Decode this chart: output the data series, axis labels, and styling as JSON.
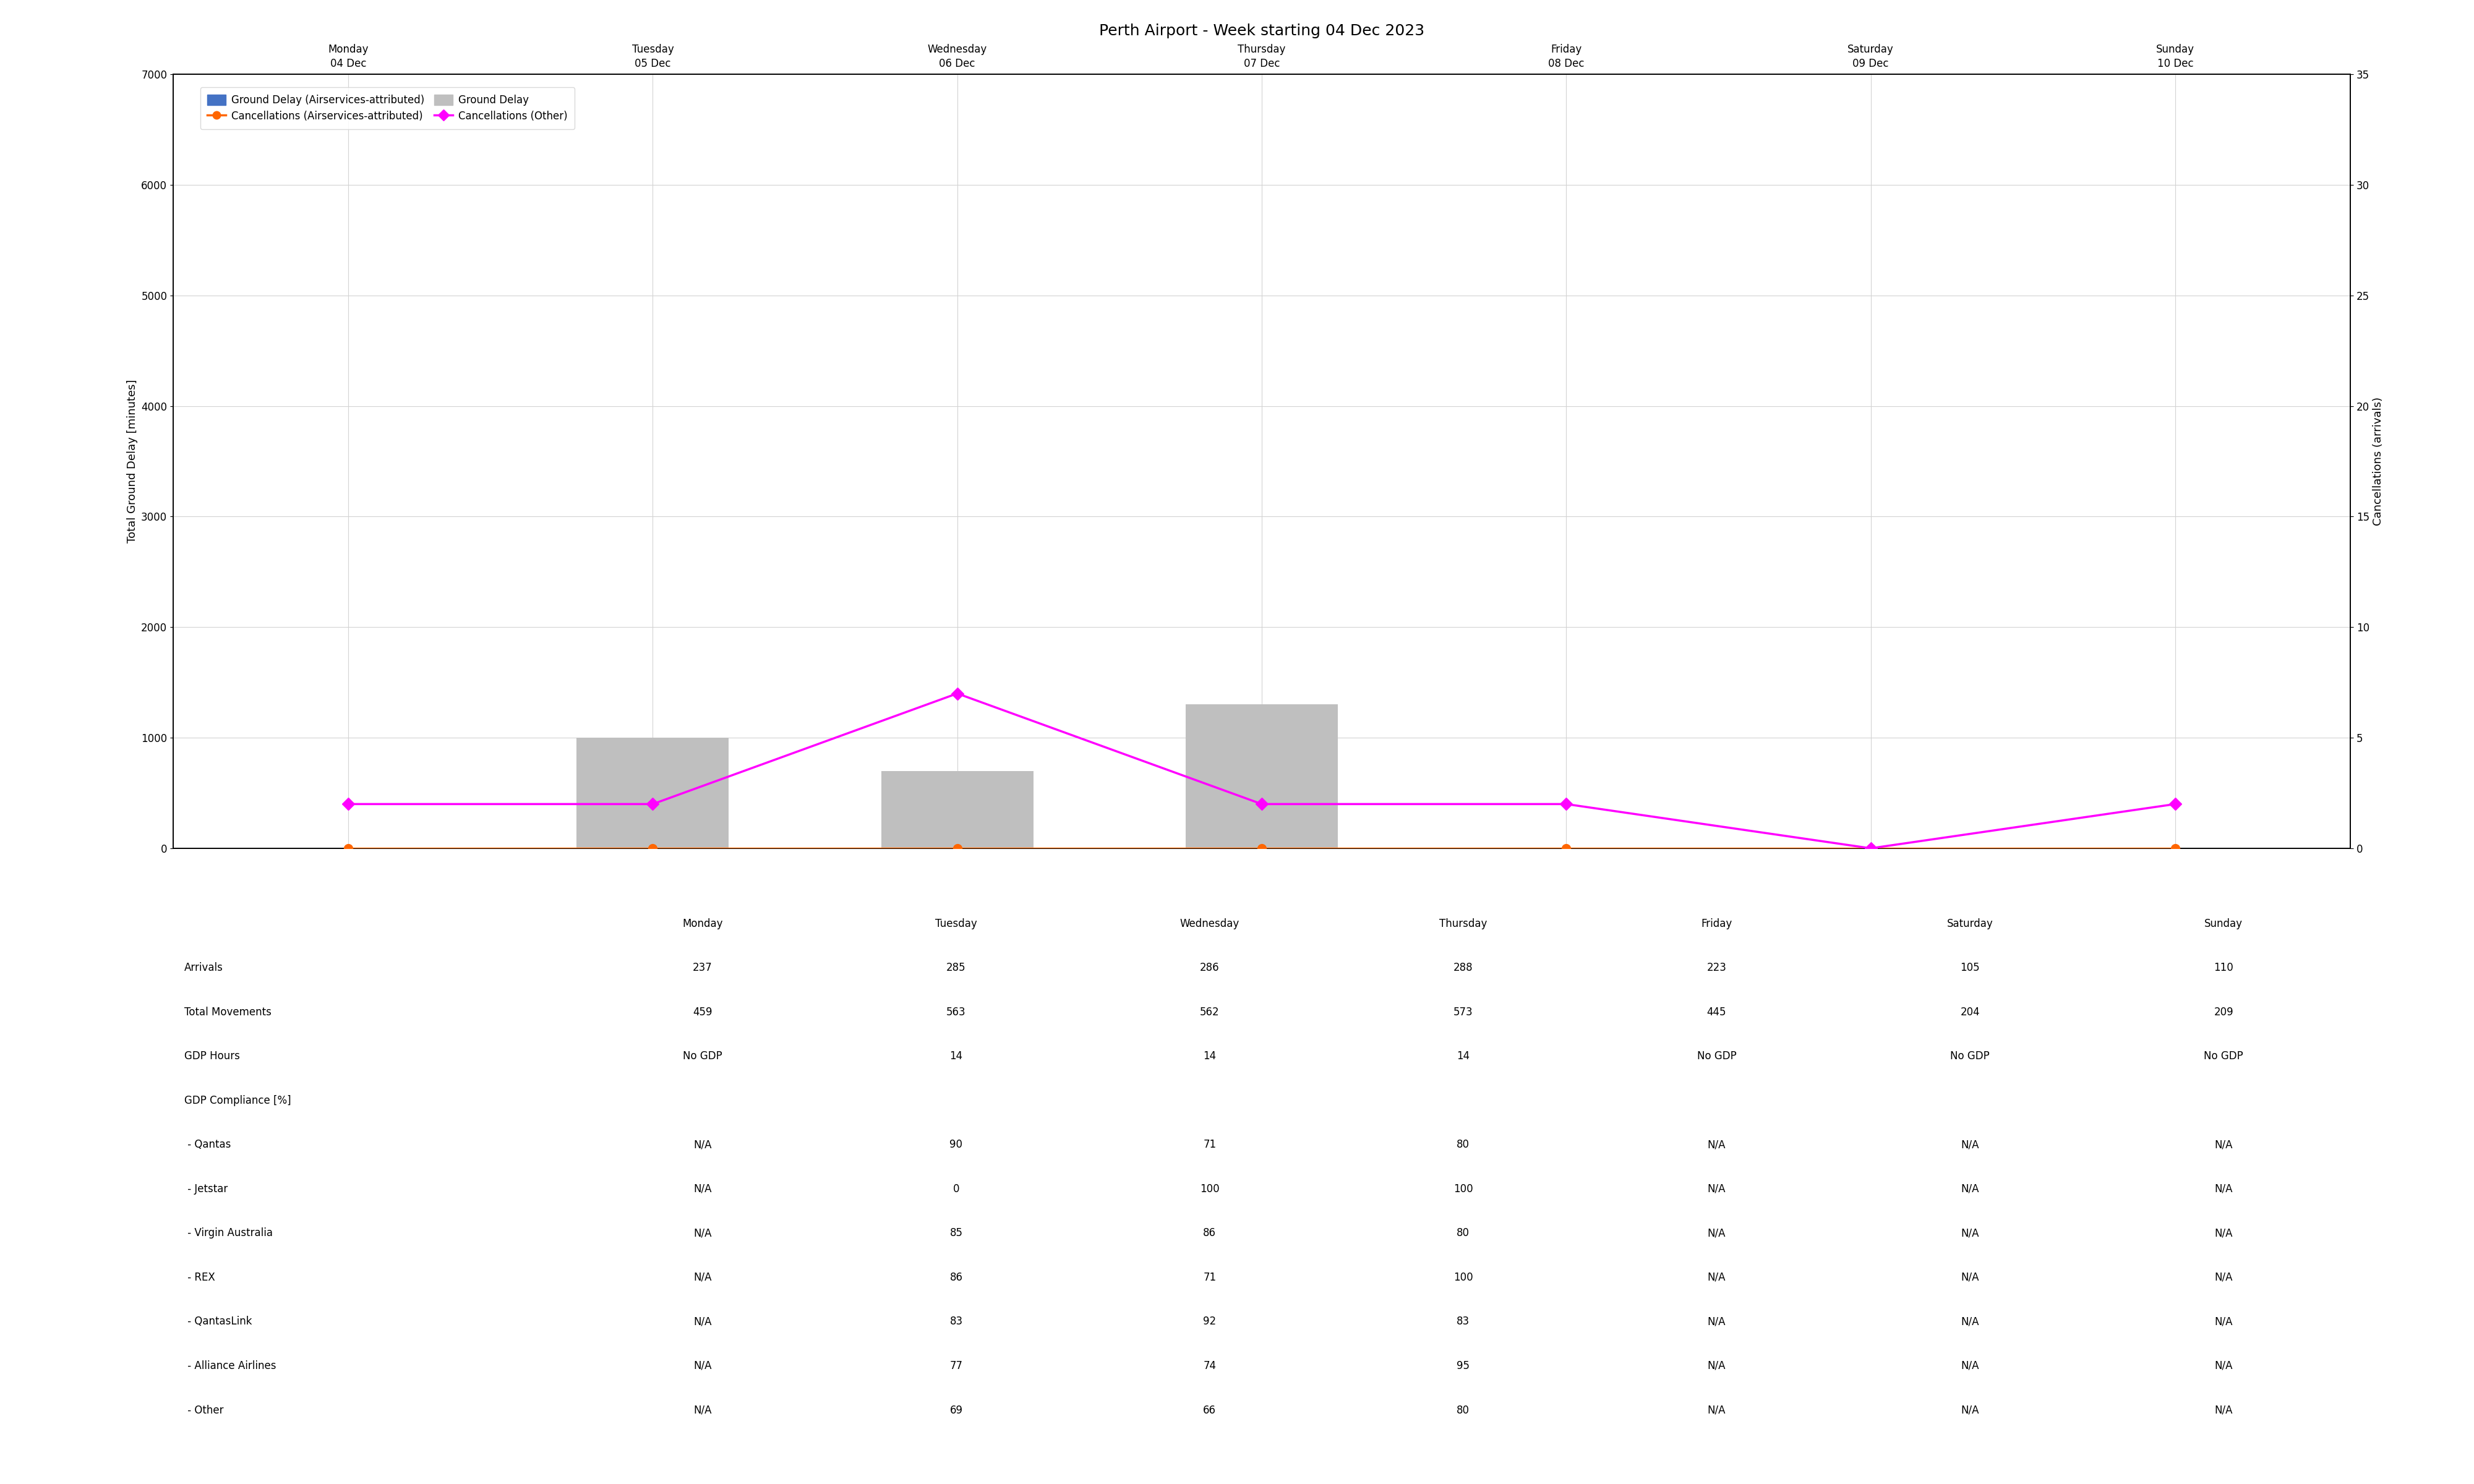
{
  "title": "Perth Airport - Week starting 04 Dec 2023",
  "days": [
    "Monday\n04 Dec",
    "Tuesday\n05 Dec",
    "Wednesday\n06 Dec",
    "Thursday\n07 Dec",
    "Friday\n08 Dec",
    "Saturday\n09 Dec",
    "Sunday\n10 Dec"
  ],
  "days_short": [
    "Monday",
    "Tuesday",
    "Wednesday",
    "Thursday",
    "Friday",
    "Saturday",
    "Sunday"
  ],
  "ground_delay_airservices": [
    0,
    0,
    0,
    0,
    0,
    0,
    0
  ],
  "ground_delay_total": [
    0,
    1000,
    700,
    1300,
    0,
    0,
    0
  ],
  "cancellations_airservices": [
    0,
    0,
    0,
    0,
    0,
    0,
    0
  ],
  "cancellations_other": [
    2,
    2,
    7,
    2,
    2,
    0,
    2
  ],
  "ylim_left": [
    0,
    7000
  ],
  "ylim_right": [
    0,
    35
  ],
  "yticks_left": [
    0,
    1000,
    2000,
    3000,
    4000,
    5000,
    6000,
    7000
  ],
  "yticks_right": [
    0,
    5,
    10,
    15,
    20,
    25,
    30,
    35
  ],
  "ylabel_left": "Total Ground Delay [minutes]",
  "ylabel_right": "Cancellations (arrivals)",
  "bar_color_airservices": "#4472C4",
  "bar_color_total": "#BFBFBF",
  "line_color_cancellations_airservices": "#FF6600",
  "line_color_cancellations_other": "#FF00FF",
  "table_rows": [
    "Arrivals",
    "Total Movements",
    "GDP Hours",
    "GDP Compliance [%]",
    " - Qantas",
    " - Jetstar",
    " - Virgin Australia",
    " - REX",
    " - QantasLink",
    " - Alliance Airlines",
    " - Other"
  ],
  "table_data": {
    "Monday": [
      "237",
      "459",
      "No GDP",
      "",
      "N/A",
      "N/A",
      "N/A",
      "N/A",
      "N/A",
      "N/A",
      "N/A"
    ],
    "Tuesday": [
      "285",
      "563",
      "14",
      "",
      "90",
      "0",
      "85",
      "86",
      "83",
      "77",
      "69"
    ],
    "Wednesday": [
      "286",
      "562",
      "14",
      "",
      "71",
      "100",
      "86",
      "71",
      "92",
      "74",
      "66"
    ],
    "Thursday": [
      "288",
      "573",
      "14",
      "",
      "80",
      "100",
      "80",
      "100",
      "83",
      "95",
      "80"
    ],
    "Friday": [
      "223",
      "445",
      "No GDP",
      "",
      "N/A",
      "N/A",
      "N/A",
      "N/A",
      "N/A",
      "N/A",
      "N/A"
    ],
    "Saturday": [
      "105",
      "204",
      "No GDP",
      "",
      "N/A",
      "N/A",
      "N/A",
      "N/A",
      "N/A",
      "N/A",
      "N/A"
    ],
    "Sunday": [
      "110",
      "209",
      "No GDP",
      "",
      "N/A",
      "N/A",
      "N/A",
      "N/A",
      "N/A",
      "N/A",
      "N/A"
    ]
  },
  "background_color": "#FFFFFF",
  "title_fontsize": 18,
  "axis_label_fontsize": 13,
  "tick_fontsize": 12,
  "legend_fontsize": 12,
  "table_header_fontsize": 12,
  "table_data_fontsize": 12,
  "table_row_label_fontsize": 12
}
